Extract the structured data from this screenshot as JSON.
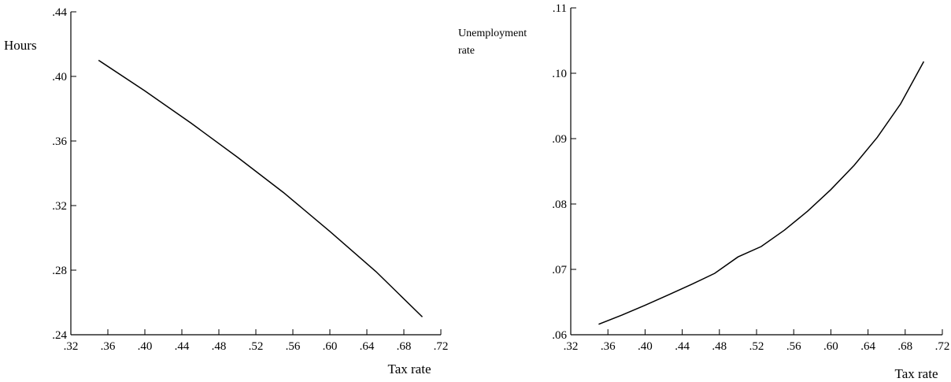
{
  "chart_data": [
    {
      "type": "line",
      "title": "",
      "xlabel": "Tax rate",
      "ylabel": "Hours",
      "xlim": [
        0.32,
        0.72
      ],
      "ylim": [
        0.24,
        0.44
      ],
      "xticks": [
        ".32",
        ".36",
        ".40",
        ".44",
        ".48",
        ".52",
        ".56",
        ".60",
        ".64",
        ".68",
        ".72"
      ],
      "yticks": [
        ".24",
        ".28",
        ".32",
        ".36",
        ".40",
        ".44"
      ],
      "grid": false,
      "series": [
        {
          "x": [
            0.35,
            0.4,
            0.45,
            0.5,
            0.55,
            0.6,
            0.65,
            0.7
          ],
          "values": [
            0.41,
            0.391,
            0.371,
            0.35,
            0.328,
            0.304,
            0.279,
            0.251
          ]
        }
      ]
    },
    {
      "type": "line",
      "title": "",
      "xlabel": "Tax rate",
      "ylabel": [
        "Unemployment",
        "rate"
      ],
      "xlim": [
        0.32,
        0.72
      ],
      "ylim": [
        0.06,
        0.11
      ],
      "xticks": [
        ".32",
        ".36",
        ".40",
        ".44",
        ".48",
        ".52",
        ".56",
        ".60",
        ".64",
        ".68",
        ".72"
      ],
      "yticks": [
        ".06",
        ".07",
        ".08",
        ".09",
        ".10",
        ".11"
      ],
      "grid": false,
      "series": [
        {
          "x": [
            0.35,
            0.375,
            0.4,
            0.425,
            0.45,
            0.475,
            0.5,
            0.525,
            0.55,
            0.575,
            0.6,
            0.625,
            0.65,
            0.675,
            0.7
          ],
          "values": [
            0.0616,
            0.063,
            0.0645,
            0.0661,
            0.0677,
            0.0694,
            0.0719,
            0.0735,
            0.076,
            0.0789,
            0.0822,
            0.0859,
            0.0902,
            0.0953,
            0.1018
          ]
        }
      ]
    }
  ]
}
